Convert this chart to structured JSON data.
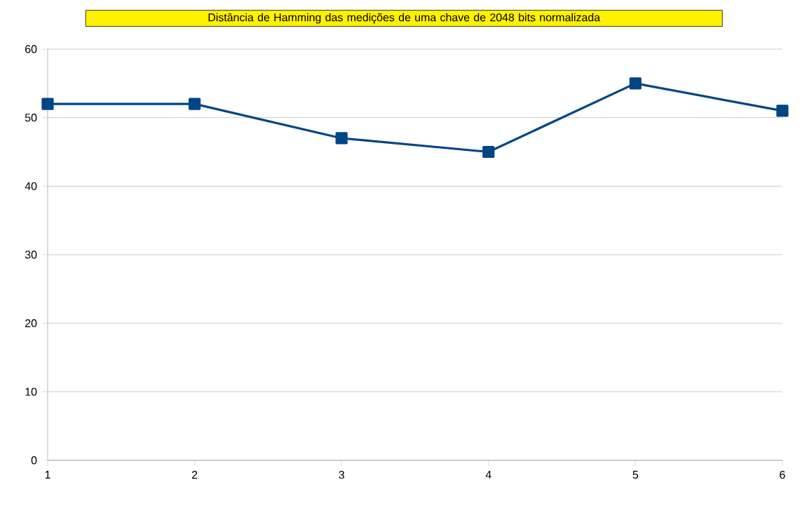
{
  "chart_data": {
    "type": "line",
    "title": "Distância de Hamming das medições de uma chave de 2048 bits normalizada",
    "x": [
      1,
      2,
      3,
      4,
      5,
      6
    ],
    "series": [
      {
        "color": "#004586",
        "values": [
          52,
          52,
          47,
          45,
          55,
          51
        ]
      }
    ],
    "xlim": [
      1,
      6
    ],
    "xticks": [
      1,
      2,
      3,
      4,
      5,
      6
    ],
    "ylim": [
      0,
      60
    ],
    "yticks": [
      0,
      10,
      20,
      30,
      40,
      50,
      60
    ],
    "grid": "y",
    "marker": "square",
    "line_style": "solid"
  }
}
